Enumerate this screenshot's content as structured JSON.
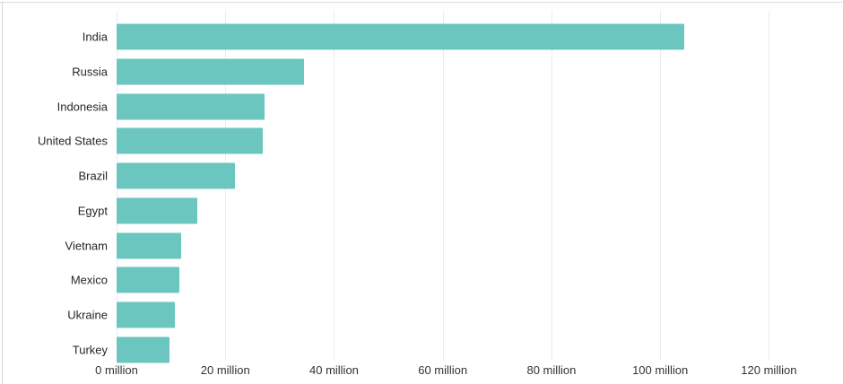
{
  "chart_data": {
    "type": "bar",
    "orientation": "horizontal",
    "title": "",
    "xlabel": "",
    "ylabel": "",
    "unit": "million",
    "categories": [
      "India",
      "Russia",
      "Indonesia",
      "United States",
      "Brazil",
      "Egypt",
      "Vietnam",
      "Mexico",
      "Ukraine",
      "Turkey"
    ],
    "values": [
      104.5,
      34.5,
      27.2,
      26.9,
      21.8,
      14.9,
      11.8,
      11.5,
      10.8,
      9.8
    ],
    "x_tick_values": [
      0,
      20,
      40,
      60,
      80,
      100,
      120
    ],
    "x_tick_labels": [
      "0 million",
      "20 million",
      "40 million",
      "60 million",
      "80 million",
      "100 million",
      "120 million"
    ],
    "xlim": [
      0,
      130
    ],
    "grid": "vertical-only",
    "legend": "none",
    "colors": {
      "bar": "#6bc6c0",
      "gridline": "#ececec",
      "category_label": "#262626",
      "tick_label": "#333333",
      "background": "#ffffff",
      "panel_border": "#d9d9d9"
    }
  }
}
